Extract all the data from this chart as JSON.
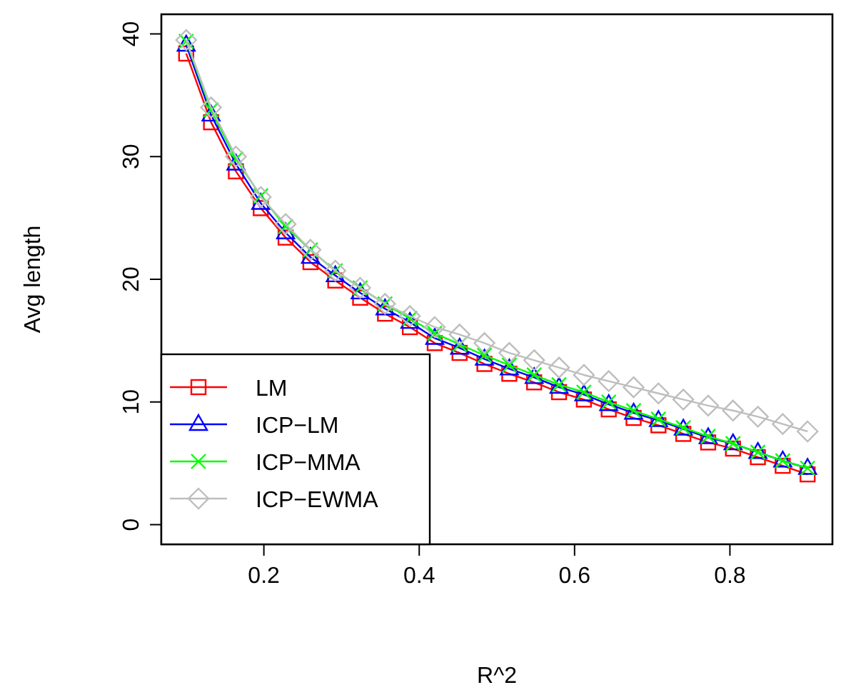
{
  "chart_data": {
    "type": "line",
    "xlabel": "R^2",
    "ylabel": "Avg length",
    "x": [
      0.1,
      0.132,
      0.164,
      0.196,
      0.228,
      0.26,
      0.292,
      0.324,
      0.356,
      0.388,
      0.42,
      0.452,
      0.484,
      0.516,
      0.548,
      0.58,
      0.612,
      0.644,
      0.676,
      0.708,
      0.74,
      0.772,
      0.804,
      0.836,
      0.868,
      0.9
    ],
    "series": [
      {
        "name": "LM",
        "color": "#ff0000",
        "marker": "square",
        "values": [
          38.4,
          32.8,
          28.8,
          25.8,
          23.4,
          21.4,
          19.9,
          18.5,
          17.2,
          16.1,
          14.8,
          14.0,
          13.1,
          12.3,
          11.6,
          10.8,
          10.2,
          9.4,
          8.7,
          8.1,
          7.4,
          6.7,
          6.2,
          5.5,
          4.8,
          4.1
        ]
      },
      {
        "name": "ICP−LM",
        "color": "#0000ff",
        "marker": "triangle",
        "values": [
          39.1,
          33.4,
          29.4,
          26.2,
          23.8,
          21.8,
          20.3,
          18.9,
          17.6,
          16.5,
          15.2,
          14.4,
          13.5,
          12.7,
          12.0,
          11.2,
          10.6,
          9.8,
          9.1,
          8.5,
          7.8,
          7.1,
          6.6,
          5.9,
          5.2,
          4.6
        ]
      },
      {
        "name": "ICP−MMA",
        "color": "#00ff00",
        "marker": "cross",
        "values": [
          39.4,
          33.8,
          29.8,
          26.8,
          24.3,
          22.4,
          20.7,
          19.3,
          18.0,
          16.8,
          15.6,
          14.7,
          13.8,
          13.0,
          12.2,
          11.4,
          10.8,
          10.0,
          9.3,
          8.6,
          7.9,
          7.2,
          6.6,
          5.9,
          5.2,
          4.6
        ]
      },
      {
        "name": "ICP−EWMA",
        "color": "#bebebe",
        "marker": "diamond",
        "values": [
          39.5,
          34.0,
          30.0,
          26.7,
          24.5,
          22.4,
          20.7,
          19.3,
          18.0,
          17.0,
          16.1,
          15.5,
          14.8,
          14.0,
          13.4,
          12.8,
          12.2,
          11.7,
          11.2,
          10.7,
          10.2,
          9.7,
          9.3,
          8.8,
          8.2,
          7.6
        ]
      }
    ],
    "xlim": [
      0.068,
      0.932
    ],
    "ylim": [
      -1.6,
      41.6
    ],
    "xticks": [
      0.2,
      0.4,
      0.6,
      0.8
    ],
    "yticks": [
      0,
      10,
      20,
      30,
      40
    ],
    "grid": false,
    "legend": "bottom left",
    "line_style": "solid"
  }
}
